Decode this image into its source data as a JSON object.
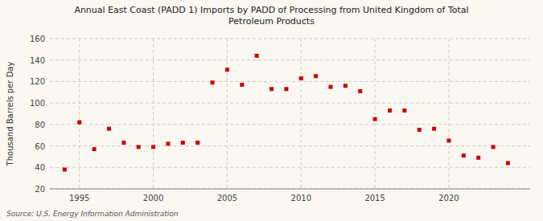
{
  "chart_data": {
    "type": "scatter",
    "title": "Annual East Coast (PADD 1) Imports by PADD of Processing from United Kingdom of Total\nPetroleum Products",
    "ylabel": "Thousand Barrels per Day",
    "annotations": [
      "Source: U.S. Energy Information Administration"
    ],
    "x": [
      1994,
      1995,
      1996,
      1997,
      1998,
      1999,
      2000,
      2001,
      2002,
      2003,
      2004,
      2005,
      2006,
      2007,
      2008,
      2009,
      2010,
      2011,
      2012,
      2013,
      2014,
      2015,
      2016,
      2017,
      2018,
      2019,
      2020,
      2021,
      2022,
      2023,
      2024
    ],
    "values": [
      38,
      82,
      57,
      76,
      63,
      59,
      59,
      62,
      63,
      63,
      119,
      131,
      117,
      144,
      113,
      113,
      123,
      125,
      115,
      116,
      111,
      85,
      93,
      93,
      75,
      76,
      65,
      51,
      49,
      59,
      44
    ],
    "color": "#cc0000",
    "marker": "square",
    "xlim": [
      1993,
      2025.5
    ],
    "ylim": [
      20,
      160
    ],
    "xticks": [
      1995,
      2000,
      2005,
      2010,
      2015,
      2020
    ],
    "yticks": [
      20,
      40,
      60,
      80,
      100,
      120,
      140,
      160
    ],
    "grid": true
  }
}
